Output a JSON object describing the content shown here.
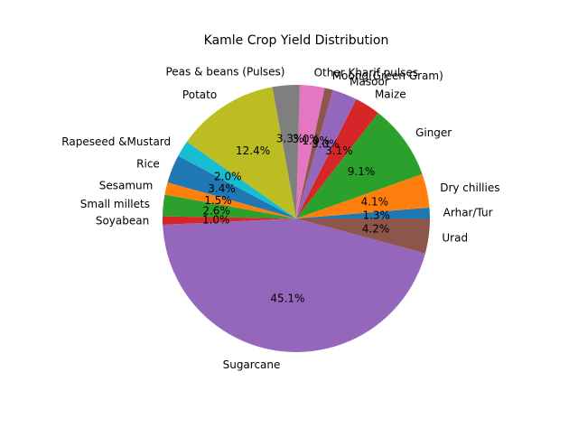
{
  "chart_data": {
    "type": "pie",
    "title": "Kamle Crop Yield Distribution",
    "slices": [
      {
        "label": "Arhar/Tur",
        "value": 1.3,
        "pct_label": "1.3%",
        "color": "#1f77b4"
      },
      {
        "label": "Dry chillies",
        "value": 4.1,
        "pct_label": "4.1%",
        "color": "#ff7f0e"
      },
      {
        "label": "Ginger",
        "value": 9.1,
        "pct_label": "9.1%",
        "color": "#2ca02c"
      },
      {
        "label": "Maize",
        "value": 3.1,
        "pct_label": "3.1%",
        "color": "#d62728"
      },
      {
        "label": "Masoor",
        "value": 3.0,
        "pct_label": "3.0%",
        "color": "#9467bd"
      },
      {
        "label": "Moong(Green Gram)",
        "value": 1.0,
        "pct_label": "1.0%",
        "color": "#8c564b"
      },
      {
        "label": "Other Kharif pulses",
        "value": 3.0,
        "pct_label": "3.0%",
        "color": "#e377c2"
      },
      {
        "label": "Peas & beans (Pulses)",
        "value": 3.3,
        "pct_label": "3.3%",
        "color": "#7f7f7f"
      },
      {
        "label": "Potato",
        "value": 12.4,
        "pct_label": "12.4%",
        "color": "#bcbd22"
      },
      {
        "label": "Rapeseed &Mustard",
        "value": 2.0,
        "pct_label": "2.0%",
        "color": "#17becf"
      },
      {
        "label": "Rice",
        "value": 3.4,
        "pct_label": "3.4%",
        "color": "#1f77b4"
      },
      {
        "label": "Sesamum",
        "value": 1.5,
        "pct_label": "1.5%",
        "color": "#ff7f0e"
      },
      {
        "label": "Small millets",
        "value": 2.6,
        "pct_label": "2.6%",
        "color": "#2ca02c"
      },
      {
        "label": "Soyabean",
        "value": 1.0,
        "pct_label": "1.0%",
        "color": "#d62728"
      },
      {
        "label": "Sugarcane",
        "value": 45.1,
        "pct_label": "45.1%",
        "color": "#9467bd"
      },
      {
        "label": "Urad",
        "value": 4.2,
        "pct_label": "4.2%",
        "color": "#8c564b"
      }
    ],
    "start_angle_deg": 0,
    "direction": "counterclockwise"
  }
}
